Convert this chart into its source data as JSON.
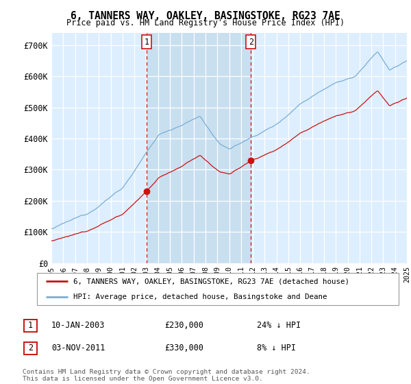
{
  "title": "6, TANNERS WAY, OAKLEY, BASINGSTOKE, RG23 7AE",
  "subtitle": "Price paid vs. HM Land Registry's House Price Index (HPI)",
  "hpi_label": "HPI: Average price, detached house, Basingstoke and Deane",
  "property_label": "6, TANNERS WAY, OAKLEY, BASINGSTOKE, RG23 7AE (detached house)",
  "annotation1_date": "10-JAN-2003",
  "annotation1_price": "£230,000",
  "annotation1_hpi": "24% ↓ HPI",
  "annotation1_year": 2003.04,
  "annotation1_value": 230000,
  "annotation2_date": "03-NOV-2011",
  "annotation2_price": "£330,000",
  "annotation2_hpi": "8% ↓ HPI",
  "annotation2_year": 2011.84,
  "annotation2_value": 330000,
  "ylabel_ticks": [
    "£0",
    "£100K",
    "£200K",
    "£300K",
    "£400K",
    "£500K",
    "£600K",
    "£700K"
  ],
  "ytick_vals": [
    0,
    100000,
    200000,
    300000,
    400000,
    500000,
    600000,
    700000
  ],
  "xlim_start": 1995,
  "xlim_end": 2025,
  "ylim": [
    0,
    740000
  ],
  "bg_color": "#ddeeff",
  "hpi_color": "#7aadd4",
  "price_color": "#cc1111",
  "shade_color": "#c8dff0",
  "footer": "Contains HM Land Registry data © Crown copyright and database right 2024.\nThis data is licensed under the Open Government Licence v3.0."
}
